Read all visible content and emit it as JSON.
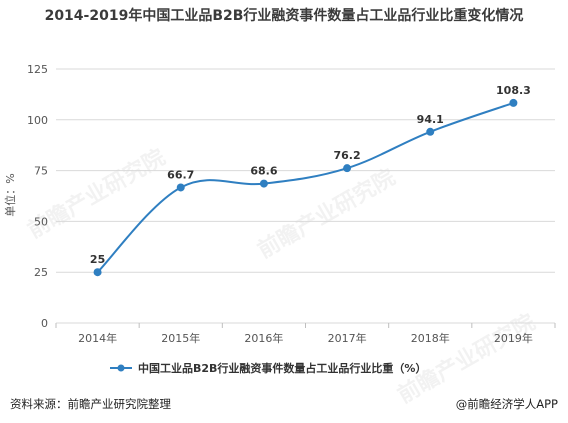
{
  "title": "2014-2019年中国工业品B2B行业融资事件数量占工业品行业比重变化情况",
  "footer": {
    "source": "资料来源：前瞻产业研究院整理",
    "brand": "@前瞻经济学人APP"
  },
  "watermark": {
    "text": "前瞻产业研究院"
  },
  "colors": {
    "series": "#2f7fc1",
    "grid": "#d9d9d9",
    "axis_text": "#555555",
    "label_text": "#333333"
  },
  "chart_data": {
    "type": "line",
    "title": "2014-2019年中国工业品B2B行业融资事件数量占工业品行业比重变化情况",
    "ylabel": "单位：%",
    "xlabel": "",
    "categories": [
      "2014年",
      "2015年",
      "2016年",
      "2017年",
      "2018年",
      "2019年"
    ],
    "series": [
      {
        "name": "中国工业品B2B行业融资事件数量占工业品行业比重（%）",
        "values": [
          25,
          66.7,
          68.6,
          76.2,
          94.1,
          108.3
        ],
        "labels": [
          "25",
          "66.7",
          "68.6",
          "76.2",
          "94.1",
          "108.3"
        ]
      }
    ],
    "ylim": [
      0,
      125
    ],
    "yticks": [
      "0",
      "25",
      "50",
      "75",
      "100",
      "125"
    ],
    "yticks_values": [
      0,
      25,
      50,
      75,
      100,
      125
    ],
    "grid": true,
    "smooth": true,
    "legend_position": "bottom"
  }
}
